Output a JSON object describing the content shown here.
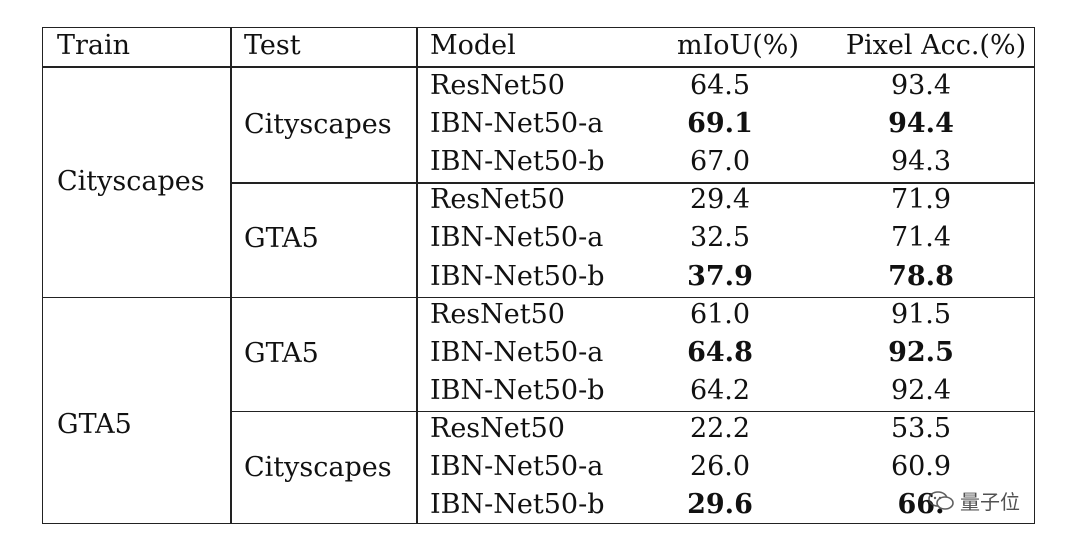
{
  "table": {
    "headers": {
      "train": "Train",
      "test": "Test",
      "model": "Model",
      "miou": "mIoU(%)",
      "pixacc": "Pixel Acc.(%)"
    },
    "groups": [
      {
        "train": "Cityscapes",
        "subgroups": [
          {
            "test": "Cityscapes",
            "rows": [
              {
                "model": "ResNet50",
                "miou": "64.5",
                "pixacc": "93.4",
                "miou_bold": false,
                "pixacc_bold": false
              },
              {
                "model": "IBN-Net50-a",
                "miou": "69.1",
                "pixacc": "94.4",
                "miou_bold": true,
                "pixacc_bold": true
              },
              {
                "model": "IBN-Net50-b",
                "miou": "67.0",
                "pixacc": "94.3",
                "miou_bold": false,
                "pixacc_bold": false
              }
            ]
          },
          {
            "test": "GTA5",
            "rows": [
              {
                "model": "ResNet50",
                "miou": "29.4",
                "pixacc": "71.9",
                "miou_bold": false,
                "pixacc_bold": false
              },
              {
                "model": "IBN-Net50-a",
                "miou": "32.5",
                "pixacc": "71.4",
                "miou_bold": false,
                "pixacc_bold": false
              },
              {
                "model": "IBN-Net50-b",
                "miou": "37.9",
                "pixacc": "78.8",
                "miou_bold": true,
                "pixacc_bold": true
              }
            ]
          }
        ]
      },
      {
        "train": "GTA5",
        "subgroups": [
          {
            "test": "GTA5",
            "rows": [
              {
                "model": "ResNet50",
                "miou": "61.0",
                "pixacc": "91.5",
                "miou_bold": false,
                "pixacc_bold": false
              },
              {
                "model": "IBN-Net50-a",
                "miou": "64.8",
                "pixacc": "92.5",
                "miou_bold": true,
                "pixacc_bold": true
              },
              {
                "model": "IBN-Net50-b",
                "miou": "64.2",
                "pixacc": "92.4",
                "miou_bold": false,
                "pixacc_bold": false
              }
            ]
          },
          {
            "test": "Cityscapes",
            "rows": [
              {
                "model": "ResNet50",
                "miou": "22.2",
                "pixacc": "53.5",
                "miou_bold": false,
                "pixacc_bold": false
              },
              {
                "model": "IBN-Net50-a",
                "miou": "26.0",
                "pixacc": "60.9",
                "miou_bold": false,
                "pixacc_bold": false
              },
              {
                "model": "IBN-Net50-b",
                "miou": "29.6",
                "pixacc": "66.",
                "miou_bold": true,
                "pixacc_bold": true
              }
            ]
          }
        ]
      }
    ]
  },
  "watermark": {
    "text": "量子位",
    "icon": "wechat-icon"
  }
}
